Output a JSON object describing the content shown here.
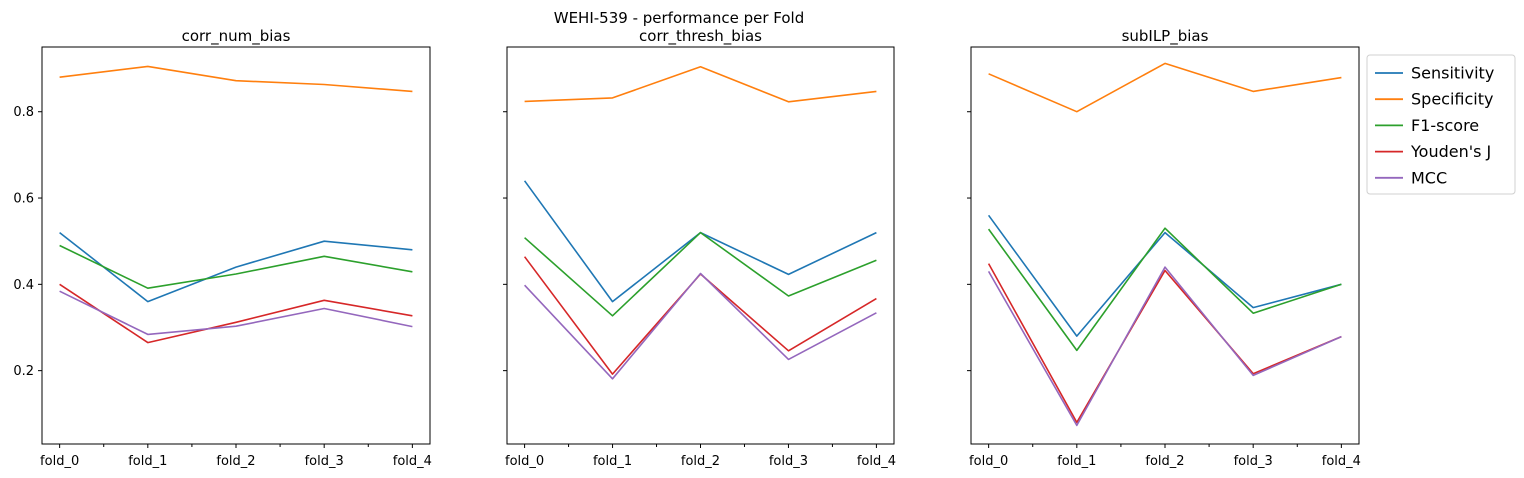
{
  "figure": {
    "suptitle": "WEHI-539 - performance per Fold"
  },
  "legend": {
    "entries": [
      "Sensitivity",
      "Specificity",
      "F1-score",
      "Youden's J",
      "MCC"
    ],
    "placement": "right, outside top"
  },
  "colors": {
    "Sensitivity": "#1f77b4",
    "Specificity": "#ff7f0e",
    "F1-score": "#2ca02c",
    "Youden's J": "#d62728",
    "MCC": "#9467bd"
  },
  "chart_data": [
    {
      "type": "line",
      "title": "corr_num_bias",
      "categories": [
        "fold_0",
        "fold_1",
        "fold_2",
        "fold_3",
        "fold_4"
      ],
      "ylim": [
        0.03,
        0.95
      ],
      "yticks": [
        0.2,
        0.4,
        0.6,
        0.8
      ],
      "grid": false,
      "series": [
        {
          "name": "Sensitivity",
          "values": [
            0.52,
            0.36,
            0.44,
            0.5,
            0.48
          ]
        },
        {
          "name": "Specificity",
          "values": [
            0.88,
            0.905,
            0.872,
            0.863,
            0.847
          ]
        },
        {
          "name": "F1-score",
          "values": [
            0.49,
            0.391,
            0.424,
            0.465,
            0.429
          ]
        },
        {
          "name": "Youden's J",
          "values": [
            0.4,
            0.265,
            0.312,
            0.363,
            0.327
          ]
        },
        {
          "name": "MCC",
          "values": [
            0.384,
            0.284,
            0.303,
            0.344,
            0.302
          ]
        }
      ]
    },
    {
      "type": "line",
      "title": "corr_thresh_bias",
      "categories": [
        "fold_0",
        "fold_1",
        "fold_2",
        "fold_3",
        "fold_4"
      ],
      "ylim": [
        0.03,
        0.95
      ],
      "yticks": [
        0.2,
        0.4,
        0.6,
        0.8
      ],
      "grid": false,
      "series": [
        {
          "name": "Sensitivity",
          "values": [
            0.64,
            0.36,
            0.52,
            0.423,
            0.52
          ]
        },
        {
          "name": "Specificity",
          "values": [
            0.824,
            0.832,
            0.904,
            0.823,
            0.847
          ]
        },
        {
          "name": "F1-score",
          "values": [
            0.508,
            0.327,
            0.52,
            0.373,
            0.456
          ]
        },
        {
          "name": "Youden's J",
          "values": [
            0.464,
            0.192,
            0.424,
            0.246,
            0.367
          ]
        },
        {
          "name": "MCC",
          "values": [
            0.398,
            0.181,
            0.425,
            0.226,
            0.334
          ]
        }
      ]
    },
    {
      "type": "line",
      "title": "subILP_bias",
      "categories": [
        "fold_0",
        "fold_1",
        "fold_2",
        "fold_3",
        "fold_4"
      ],
      "ylim": [
        0.03,
        0.95
      ],
      "yticks": [
        0.2,
        0.4,
        0.6,
        0.8
      ],
      "grid": false,
      "series": [
        {
          "name": "Sensitivity",
          "values": [
            0.56,
            0.28,
            0.52,
            0.346,
            0.4
          ]
        },
        {
          "name": "Specificity",
          "values": [
            0.888,
            0.8,
            0.912,
            0.847,
            0.879
          ]
        },
        {
          "name": "F1-score",
          "values": [
            0.528,
            0.247,
            0.53,
            0.333,
            0.4
          ]
        },
        {
          "name": "Youden's J",
          "values": [
            0.448,
            0.08,
            0.432,
            0.193,
            0.279
          ]
        },
        {
          "name": "MCC",
          "values": [
            0.43,
            0.073,
            0.44,
            0.189,
            0.279
          ]
        }
      ]
    }
  ]
}
